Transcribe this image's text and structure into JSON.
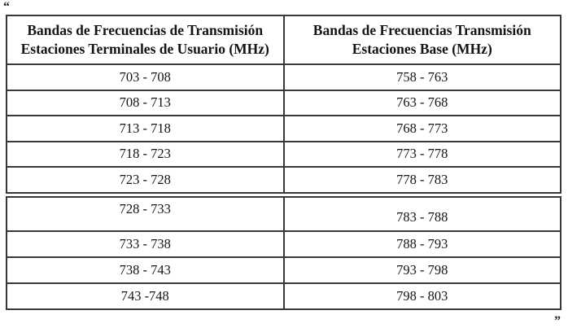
{
  "page": {
    "open_quote": "“",
    "close_quote": "”"
  },
  "colors": {
    "border": "#383838",
    "text": "#141414",
    "background": "#ffffff"
  },
  "table": {
    "headers": [
      {
        "line1": "Bandas de Frecuencias de Transmisión",
        "line2": "Estaciones Terminales de Usuario (MHz)"
      },
      {
        "line1": "Bandas de Frecuencias Transmisión",
        "line2": "Estaciones Base (MHz)"
      }
    ],
    "section1_rows": [
      [
        "703 - 708",
        "758 - 763"
      ],
      [
        "708 - 713",
        "763 - 768"
      ],
      [
        "713 - 718",
        "768 - 773"
      ],
      [
        "718 - 723",
        "773 - 778"
      ],
      [
        "723 - 728",
        "778 - 783"
      ]
    ],
    "section2_rows": [
      [
        "728 - 733",
        "783 - 788"
      ],
      [
        "733 - 738",
        "788 - 793"
      ],
      [
        "738 - 743",
        "793 - 798"
      ],
      [
        "743 -748",
        "798 - 803"
      ]
    ]
  }
}
